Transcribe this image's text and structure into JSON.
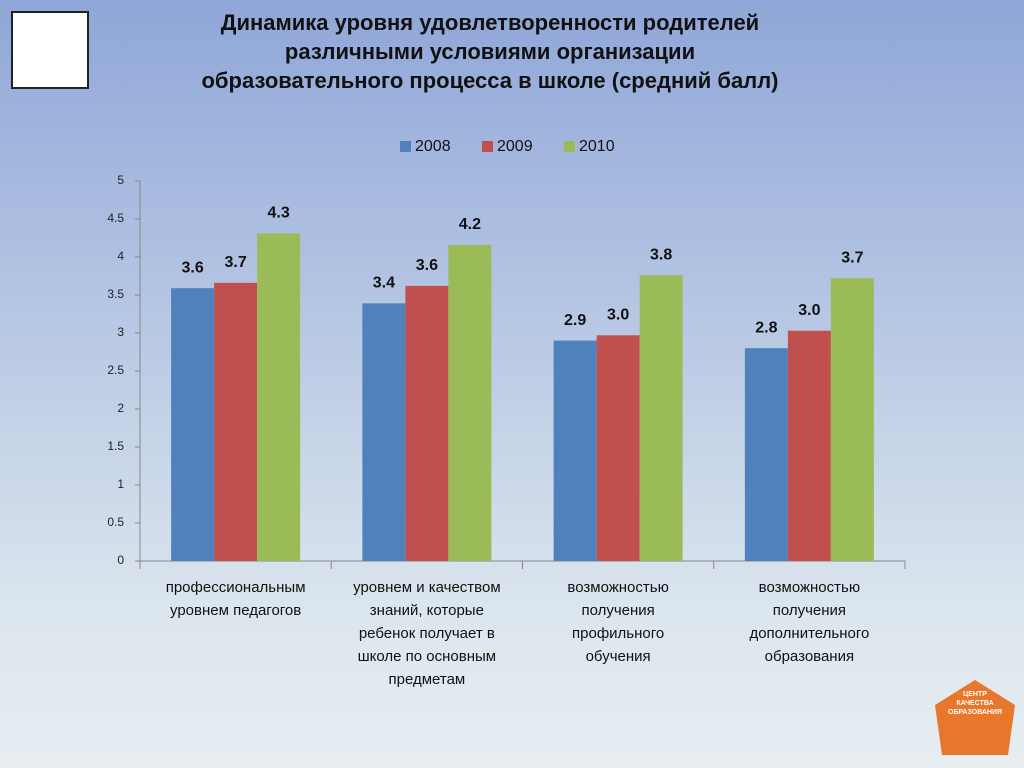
{
  "chart_data": {
    "type": "bar",
    "title": "Динамика уровня удовлетворенности родителей\nразличными условиями организации\nобразовательного процесса в школе (средний балл)",
    "categories": [
      "профессиональным\nуровнем педагогов",
      "уровнем и качеством\nзнаний, которые\nребенок получает в\nшколе  по основным\nпредметам",
      "возможностью\nполучения\nпрофильного\nобучения",
      "возможностью\nполучения\nдополнительного\nобразования"
    ],
    "series": [
      {
        "name": "2008",
        "color": "#4f81bd",
        "values": [
          3.59,
          3.39,
          2.9,
          2.8
        ],
        "value_labels": [
          "3.6",
          "3.4",
          "2.9",
          "2.8"
        ]
      },
      {
        "name": "2009",
        "color": "#c0504d",
        "values": [
          3.66,
          3.62,
          2.97,
          3.03
        ],
        "value_labels": [
          "3.7",
          "3.6",
          "3.0",
          "3.0"
        ]
      },
      {
        "name": "2010",
        "color": "#9bbb59",
        "values": [
          4.31,
          4.16,
          3.76,
          3.72
        ],
        "value_labels": [
          "4.3",
          "4.2",
          "3.8",
          "3.7"
        ]
      }
    ],
    "ylim": [
      0,
      5
    ],
    "yticks": [
      0,
      0.5,
      1,
      1.5,
      2,
      2.5,
      3,
      3.5,
      4,
      4.5,
      5
    ],
    "legend": "top",
    "grid": false
  },
  "badge": "ЦЕНТР\nКАЧЕСТВА\nОБРАЗОВАНИЯ"
}
